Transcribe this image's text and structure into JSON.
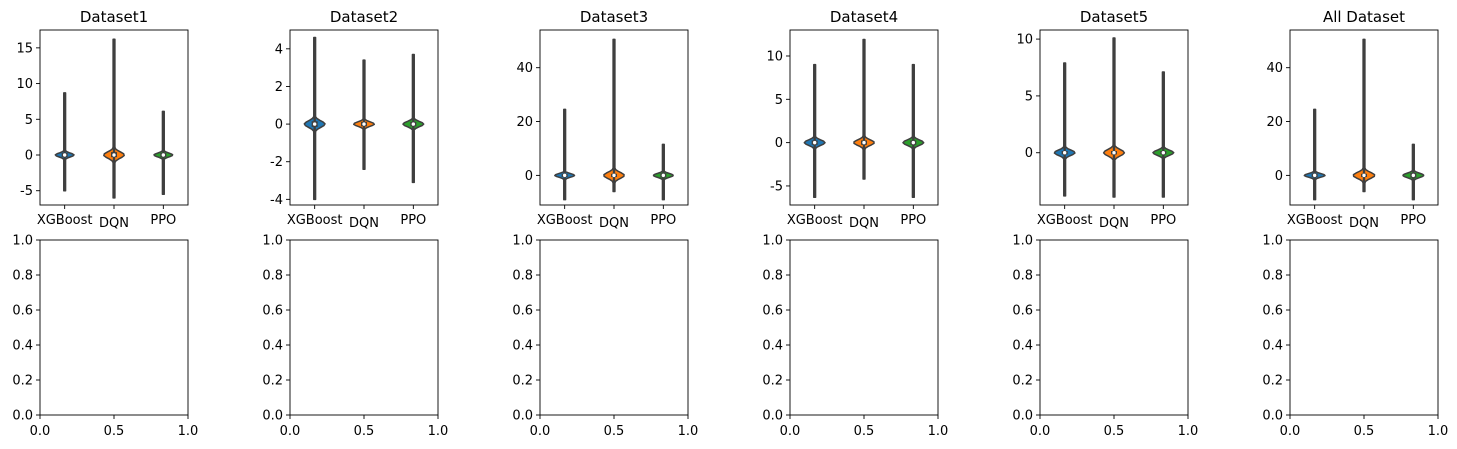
{
  "chart_data": [
    {
      "type": "violin",
      "title": "Dataset1",
      "categories": [
        "XGBoost",
        "DQN",
        "PPO"
      ],
      "ylim": [
        -7,
        17.5
      ],
      "yticks": [
        -5,
        0,
        5,
        10,
        15
      ],
      "series": [
        {
          "min": -5,
          "max": 8.7,
          "median": 0,
          "iqr": [
            -0.3,
            0.3
          ],
          "width": 0.38,
          "color": "#1f77b4"
        },
        {
          "min": -6,
          "max": 16.2,
          "median": 0,
          "iqr": [
            -0.3,
            0.4
          ],
          "width": 0.42,
          "color": "#ff7f0e"
        },
        {
          "min": -5.5,
          "max": 6.1,
          "median": 0,
          "iqr": [
            -0.3,
            0.3
          ],
          "width": 0.38,
          "color": "#2ca02c"
        }
      ]
    },
    {
      "type": "violin",
      "title": "Dataset2",
      "categories": [
        "XGBoost",
        "DQN",
        "PPO"
      ],
      "ylim": [
        -4.3,
        5
      ],
      "yticks": [
        -4,
        -2,
        0,
        2,
        4
      ],
      "series": [
        {
          "min": -4,
          "max": 4.6,
          "median": 0,
          "iqr": [
            -0.15,
            0.15
          ],
          "width": 0.42,
          "color": "#1f77b4"
        },
        {
          "min": -2.4,
          "max": 3.4,
          "median": 0,
          "iqr": [
            -0.12,
            0.12
          ],
          "width": 0.42,
          "color": "#ff7f0e"
        },
        {
          "min": -3.1,
          "max": 3.7,
          "median": 0,
          "iqr": [
            -0.12,
            0.12
          ],
          "width": 0.42,
          "color": "#2ca02c"
        }
      ]
    },
    {
      "type": "violin",
      "title": "Dataset3",
      "categories": [
        "XGBoost",
        "DQN",
        "PPO"
      ],
      "ylim": [
        -11,
        54
      ],
      "yticks": [
        0,
        20,
        40
      ],
      "series": [
        {
          "min": -9,
          "max": 24.5,
          "median": 0,
          "iqr": [
            -0.6,
            0.6
          ],
          "width": 0.4,
          "color": "#1f77b4"
        },
        {
          "min": -6,
          "max": 50.5,
          "median": 0,
          "iqr": [
            -0.6,
            0.6
          ],
          "width": 0.42,
          "color": "#ff7f0e"
        },
        {
          "min": -9,
          "max": 11.5,
          "median": 0,
          "iqr": [
            -0.8,
            0.8
          ],
          "width": 0.4,
          "color": "#2ca02c"
        }
      ]
    },
    {
      "type": "violin",
      "title": "Dataset4",
      "categories": [
        "XGBoost",
        "DQN",
        "PPO"
      ],
      "ylim": [
        -7.2,
        13
      ],
      "yticks": [
        -5,
        0,
        5,
        10
      ],
      "series": [
        {
          "min": -6.3,
          "max": 9,
          "median": 0,
          "iqr": [
            -0.25,
            0.25
          ],
          "width": 0.42,
          "color": "#1f77b4"
        },
        {
          "min": -4.2,
          "max": 11.9,
          "median": 0,
          "iqr": [
            -0.25,
            0.25
          ],
          "width": 0.42,
          "color": "#ff7f0e"
        },
        {
          "min": -6.3,
          "max": 9,
          "median": 0,
          "iqr": [
            -0.25,
            0.25
          ],
          "width": 0.42,
          "color": "#2ca02c"
        }
      ]
    },
    {
      "type": "violin",
      "title": "Dataset5",
      "categories": [
        "XGBoost",
        "DQN",
        "PPO"
      ],
      "ylim": [
        -4.6,
        10.8
      ],
      "yticks": [
        0,
        5,
        10
      ],
      "series": [
        {
          "min": -3.8,
          "max": 7.9,
          "median": 0,
          "iqr": [
            -0.15,
            0.15
          ],
          "width": 0.42,
          "color": "#1f77b4"
        },
        {
          "min": -3.9,
          "max": 10.1,
          "median": 0,
          "iqr": [
            -0.15,
            0.15
          ],
          "width": 0.42,
          "color": "#ff7f0e"
        },
        {
          "min": -3.9,
          "max": 7.1,
          "median": 0,
          "iqr": [
            -0.15,
            0.15
          ],
          "width": 0.42,
          "color": "#2ca02c"
        }
      ]
    },
    {
      "type": "violin",
      "title": "All Dataset",
      "categories": [
        "XGBoost",
        "DQN",
        "PPO"
      ],
      "ylim": [
        -11,
        54
      ],
      "yticks": [
        0,
        20,
        40
      ],
      "series": [
        {
          "min": -9,
          "max": 24.5,
          "median": 0,
          "iqr": [
            -0.7,
            0.7
          ],
          "width": 0.42,
          "color": "#1f77b4"
        },
        {
          "min": -6,
          "max": 50.5,
          "median": 0,
          "iqr": [
            -0.6,
            0.6
          ],
          "width": 0.44,
          "color": "#ff7f0e"
        },
        {
          "min": -9,
          "max": 11.5,
          "median": 0,
          "iqr": [
            -0.9,
            0.9
          ],
          "width": 0.42,
          "color": "#2ca02c"
        }
      ]
    },
    {
      "type": "empty",
      "title": "",
      "xlim": [
        0,
        1
      ],
      "ylim": [
        0,
        1
      ],
      "xticks": [
        "0.0",
        "0.5",
        "1.0"
      ],
      "yticks": [
        "0.0",
        "0.2",
        "0.4",
        "0.6",
        "0.8",
        "1.0"
      ]
    },
    {
      "type": "empty",
      "title": "",
      "xlim": [
        0,
        1
      ],
      "ylim": [
        0,
        1
      ],
      "xticks": [
        "0.0",
        "0.5",
        "1.0"
      ],
      "yticks": [
        "0.0",
        "0.2",
        "0.4",
        "0.6",
        "0.8",
        "1.0"
      ]
    },
    {
      "type": "empty",
      "title": "",
      "xlim": [
        0,
        1
      ],
      "ylim": [
        0,
        1
      ],
      "xticks": [
        "0.0",
        "0.5",
        "1.0"
      ],
      "yticks": [
        "0.0",
        "0.2",
        "0.4",
        "0.6",
        "0.8",
        "1.0"
      ]
    },
    {
      "type": "empty",
      "title": "",
      "xlim": [
        0,
        1
      ],
      "ylim": [
        0,
        1
      ],
      "xticks": [
        "0.0",
        "0.5",
        "1.0"
      ],
      "yticks": [
        "0.0",
        "0.2",
        "0.4",
        "0.6",
        "0.8",
        "1.0"
      ]
    },
    {
      "type": "empty",
      "title": "",
      "xlim": [
        0,
        1
      ],
      "ylim": [
        0,
        1
      ],
      "xticks": [
        "0.0",
        "0.5",
        "1.0"
      ],
      "yticks": [
        "0.0",
        "0.2",
        "0.4",
        "0.6",
        "0.8",
        "1.0"
      ]
    },
    {
      "type": "empty",
      "title": "",
      "xlim": [
        0,
        1
      ],
      "ylim": [
        0,
        1
      ],
      "xticks": [
        "0.0",
        "0.5",
        "1.0"
      ],
      "yticks": [
        "0.0",
        "0.2",
        "0.4",
        "0.6",
        "0.8",
        "1.0"
      ]
    }
  ]
}
